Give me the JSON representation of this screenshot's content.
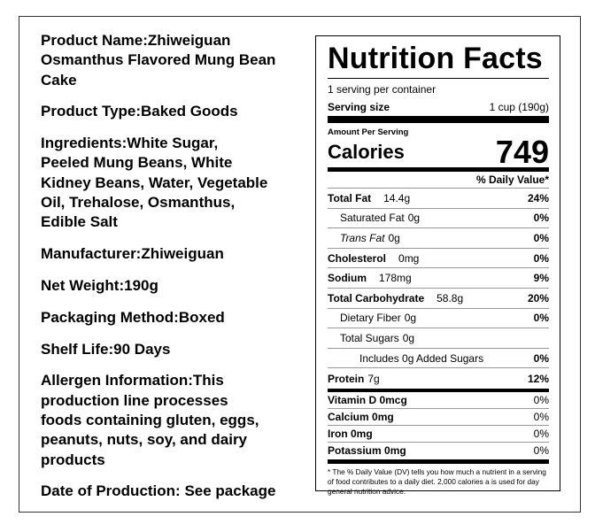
{
  "product_info": [
    {
      "lines": [
        "Product Name:Zhiweiguan",
        "Osmanthus Flavored Mung Bean",
        "Cake"
      ]
    },
    {
      "lines": [
        "Product Type:Baked Goods"
      ]
    },
    {
      "lines": [
        "Ingredients:White Sugar,",
        "Peeled Mung Beans, White",
        "Kidney Beans, Water, Vegetable",
        "Oil, Trehalose, Osmanthus,",
        "Edible Salt"
      ]
    },
    {
      "lines": [
        "Manufacturer:Zhiweiguan"
      ]
    },
    {
      "lines": [
        "Net Weight:190g"
      ]
    },
    {
      "lines": [
        "Packaging Method:Boxed"
      ]
    },
    {
      "lines": [
        "Shelf Life:90 Days"
      ]
    },
    {
      "lines": [
        "Allergen Information:This",
        "production line processes",
        "foods containing gluten, eggs,",
        "peanuts, nuts, soy, and dairy",
        "products"
      ]
    },
    {
      "lines": [
        "Date of Production: See package"
      ]
    }
  ],
  "nutrition_label": {
    "title": "Nutrition Facts",
    "servings": "1 serving per container",
    "serving_size_label": "Serving size",
    "serving_size": "1 cup (190g)",
    "amount_per_serving": "Amount Per Serving",
    "calories_label": "Calories",
    "calories": 749,
    "daily_value_header": "% Daily Value*",
    "nutrients": [
      {
        "name": "Total Fat",
        "amount": "14.4g",
        "dv": "24%",
        "bold": true,
        "indent": 0
      },
      {
        "name": "Saturated Fat",
        "amount": "0g",
        "dv": "0%",
        "bold": false,
        "indent": 1
      },
      {
        "name": "Trans Fat",
        "amount": "0g",
        "dv": "0%",
        "bold": false,
        "indent": 1
      },
      {
        "name": "Cholesterol",
        "amount": "0mg",
        "dv": "0%",
        "bold": true,
        "indent": 0
      },
      {
        "name": "Sodium",
        "amount": "178mg",
        "dv": "9%",
        "bold": true,
        "indent": 0
      },
      {
        "name": "Total Carbohydrate",
        "amount": "58.8g",
        "dv": "20%",
        "bold": true,
        "indent": 0
      },
      {
        "name": "Dietary Fiber",
        "amount": "0g",
        "dv": "0%",
        "bold": false,
        "indent": 1
      },
      {
        "name": "Total Sugars",
        "amount": "0g",
        "bold": false,
        "indent": 1
      },
      {
        "name": "Includes 0g Added Sugars",
        "dv": "0%",
        "bold": false,
        "indent": 2
      },
      {
        "name": "Protein",
        "amount": "7g",
        "dv": "12%",
        "bold": true,
        "indent": 0
      }
    ],
    "vitamins": [
      {
        "name": "Vitamin D 0mcg",
        "dv": "0%"
      },
      {
        "name": "Calcium 0mg",
        "dv": "0%"
      },
      {
        "name": "Iron 0mg",
        "dv": "0%"
      },
      {
        "name": "Potassium 0mg",
        "dv": "0%"
      }
    ],
    "footnote": "* The % Daily Value (DV) tells you how much a nutrient in a serving of food contributes to a daily diet. 2,000 calories a is used for day general nutrition advice."
  }
}
